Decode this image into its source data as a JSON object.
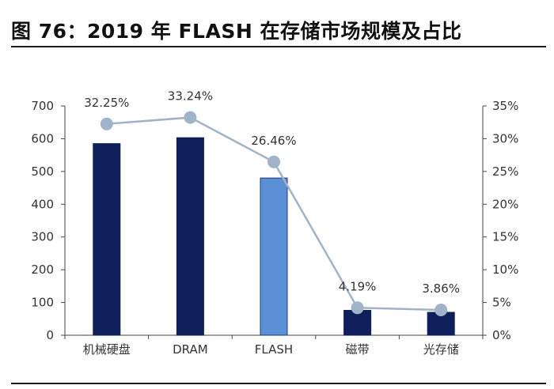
{
  "title": "图 76：2019 年 FLASH 在存储市场规模及占比",
  "colors": {
    "bar_dark": "#0e1f5b",
    "bar_highlight": "#5b8fd6",
    "bar_highlight_border": "#1e3a78",
    "line": "#a1b3c8",
    "marker": "#a1b3c8",
    "axis": "#444444",
    "text": "#333333"
  },
  "chart_data": {
    "type": "bar",
    "categories": [
      "机械硬盘",
      "DRAM",
      "FLASH",
      "磁带",
      "光存储"
    ],
    "series": [
      {
        "type": "bar",
        "axis": "left",
        "values": [
          585,
          603,
          480,
          76,
          70
        ],
        "highlight_index": 2
      },
      {
        "type": "line",
        "axis": "right",
        "values": [
          32.25,
          33.24,
          26.46,
          4.19,
          3.86
        ],
        "labels": [
          "32.25%",
          "33.24%",
          "26.46%",
          "4.19%",
          "3.86%"
        ]
      }
    ],
    "y_left": {
      "min": 0,
      "max": 700,
      "step": 100,
      "ticks": [
        "0",
        "100",
        "200",
        "300",
        "400",
        "500",
        "600",
        "700"
      ]
    },
    "y_right": {
      "min": 0,
      "max": 35,
      "step": 5,
      "ticks": [
        "0%",
        "5%",
        "10%",
        "15%",
        "20%",
        "25%",
        "30%",
        "35%"
      ]
    },
    "grid": false,
    "legend": "none"
  }
}
